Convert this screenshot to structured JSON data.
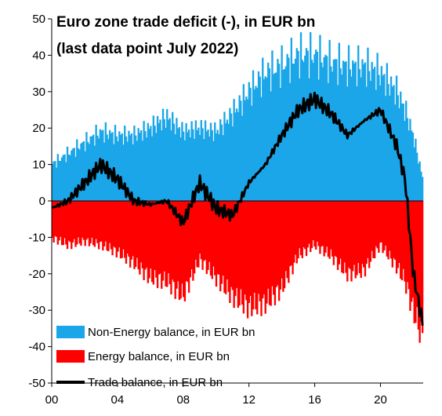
{
  "chart_data": {
    "type": "bar",
    "title_lines": [
      "Euro zone trade deficit (-), in EUR bn",
      "(last data point July 2022)"
    ],
    "xlabel": "",
    "ylabel": "",
    "x_range": [
      2000,
      2022.6
    ],
    "ylim": [
      -50,
      50
    ],
    "y_ticks": [
      -50,
      -40,
      -30,
      -20,
      -10,
      0,
      10,
      20,
      30,
      40,
      50
    ],
    "x_ticks": [
      2000,
      2004,
      2008,
      2012,
      2016,
      2020
    ],
    "x_tick_labels": [
      "00",
      "04",
      "08",
      "12",
      "16",
      "20"
    ],
    "grid": false,
    "legend_position": "bottom-left",
    "colors": {
      "non_energy": "#1aa6e8",
      "energy": "#ff0000",
      "trade": "#000000"
    },
    "series": [
      {
        "name": "Non-Energy balance, in EUR bn",
        "kind": "bar",
        "color": "#1aa6e8",
        "x": [
          2000,
          2001,
          2002,
          2003,
          2004,
          2005,
          2006,
          2007,
          2008,
          2009,
          2010,
          2011,
          2012,
          2013,
          2014,
          2015,
          2016,
          2017,
          2018,
          2019,
          2020,
          2021,
          2021.5,
          2022,
          2022.58
        ],
        "values": [
          10,
          13,
          16,
          19,
          18,
          18,
          20,
          23,
          19,
          20,
          19,
          24,
          30,
          35,
          37,
          40,
          40,
          38,
          37,
          37,
          35,
          30,
          25,
          18,
          6
        ]
      },
      {
        "name": "Energy balance, in EUR bn",
        "kind": "bar",
        "color": "#ff0000",
        "x": [
          2000,
          2001,
          2002,
          2003,
          2004,
          2005,
          2006,
          2007,
          2008,
          2009,
          2010,
          2011,
          2012,
          2013,
          2014,
          2015,
          2016,
          2017,
          2018,
          2019,
          2020,
          2021,
          2021.5,
          2022,
          2022.58
        ],
        "values": [
          -10,
          -12,
          -11,
          -12,
          -14,
          -17,
          -21,
          -22,
          -26,
          -16,
          -21,
          -26,
          -29,
          -28,
          -24,
          -15,
          -12,
          -15,
          -20,
          -19,
          -12,
          -18,
          -22,
          -30,
          -38
        ]
      },
      {
        "name": "Trade balance, in EUR bn",
        "kind": "line",
        "color": "#000000",
        "x": [
          2000,
          2001,
          2002,
          2003,
          2004,
          2005,
          2006,
          2007,
          2008,
          2009,
          2010,
          2011,
          2012,
          2013,
          2014,
          2015,
          2016,
          2017,
          2018,
          2019,
          2020,
          2021,
          2021.5,
          2022,
          2022.58
        ],
        "values": [
          -2,
          0,
          5,
          10,
          6,
          0,
          -1,
          0,
          -6,
          5,
          -2,
          -4,
          5,
          10,
          18,
          25,
          28,
          24,
          18,
          22,
          25,
          15,
          6,
          -20,
          -34
        ]
      }
    ]
  }
}
